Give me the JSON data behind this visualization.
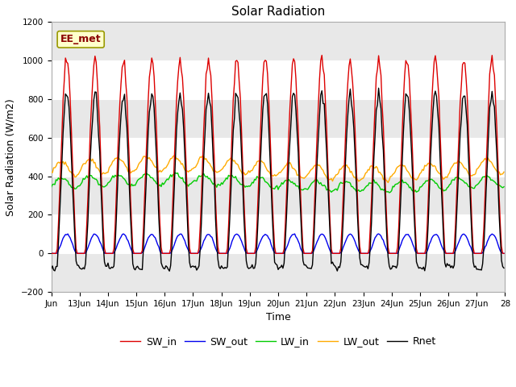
{
  "title": "Solar Radiation",
  "xlabel": "Time",
  "ylabel": "Solar Radiation (W/m2)",
  "ylim": [
    -200,
    1200
  ],
  "yticks": [
    -200,
    0,
    200,
    400,
    600,
    800,
    1000,
    1200
  ],
  "annotation": "EE_met",
  "background_color": "#ffffff",
  "plot_bg_color": "#e8e8e8",
  "white_band_color": "#ffffff",
  "lines": {
    "SW_in": {
      "color": "#dd0000",
      "lw": 1.0
    },
    "SW_out": {
      "color": "#0000ee",
      "lw": 1.0
    },
    "LW_in": {
      "color": "#00cc00",
      "lw": 1.0
    },
    "LW_out": {
      "color": "#ffaa00",
      "lw": 1.0
    },
    "Rnet": {
      "color": "#000000",
      "lw": 1.0
    }
  },
  "start_day": 12,
  "end_day": 28,
  "SW_in_peak": 1030,
  "SW_out_peak": 100,
  "LW_in_mean": 365,
  "LW_in_amp": 45,
  "LW_out_mean": 440,
  "LW_out_amp": 55,
  "Rnet_night": -80,
  "figsize": [
    6.4,
    4.8
  ],
  "dpi": 100
}
